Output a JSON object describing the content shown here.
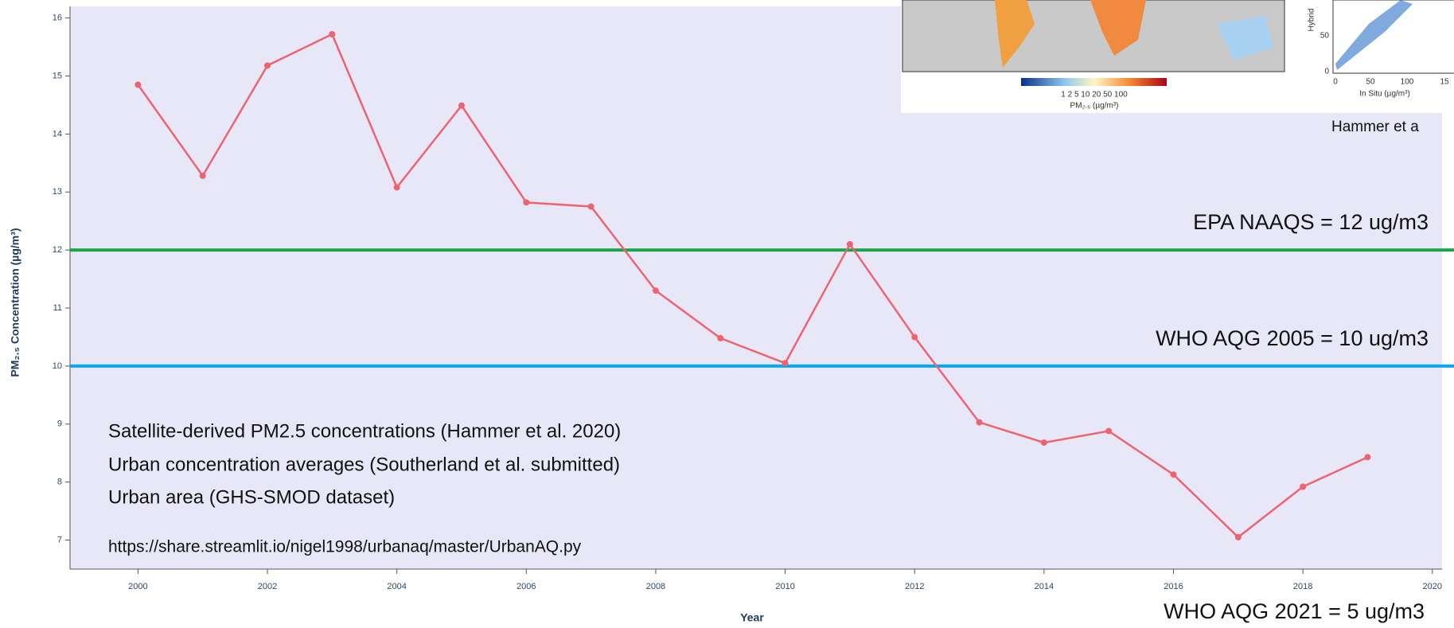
{
  "chart_data": {
    "type": "line",
    "x": [
      2000,
      2001,
      2002,
      2003,
      2004,
      2005,
      2006,
      2007,
      2008,
      2009,
      2010,
      2011,
      2012,
      2013,
      2014,
      2015,
      2016,
      2017,
      2018,
      2019
    ],
    "series": [
      {
        "color": "#ec6470",
        "values": [
          14.85,
          13.28,
          15.18,
          15.72,
          13.08,
          14.49,
          12.82,
          12.75,
          11.3,
          10.48,
          10.05,
          12.1,
          10.5,
          9.03,
          8.68,
          8.88,
          8.13,
          7.05,
          7.92,
          8.43
        ]
      }
    ],
    "xlim": [
      1998.95,
      2020.15
    ],
    "xticks": [
      2000,
      2002,
      2004,
      2006,
      2008,
      2010,
      2012,
      2014,
      2016,
      2018,
      2020
    ],
    "ylim": [
      6.5,
      16.2
    ],
    "yticks": [
      7,
      8,
      9,
      10,
      11,
      12,
      13,
      14,
      15,
      16
    ],
    "xlabel": "Year",
    "ylabel": "PM₂.₅ Concentration (µg/m³)",
    "hlines": [
      {
        "value": 12,
        "color": "#1ba34c",
        "label": "EPA NAAQS = 12 ug/m3"
      },
      {
        "value": 10,
        "color": "#0ba7ea",
        "label": "WHO AQG 2005 = 10 ug/m3"
      }
    ],
    "annotations": [
      "WHO AQG 2021 = 5 ug/m3",
      "Satellite-derived PM2.5 concentrations (Hammer et al. 2020)",
      "Urban concentration averages (Southerland et al. submitted)",
      "Urban area (GHS-SMOD dataset)",
      "https://share.streamlit.io/nigel1998/urbanaq/master/UrbanAQ.py"
    ],
    "inset": {
      "colorbar_ticks": "1   2   5  10  20  50 100",
      "colorbar_label": "PM₂.₅ (µg/m³)",
      "scatter_ylabel": "Hybrid",
      "scatter_yticks": [
        "50",
        "0"
      ],
      "scatter_xticks": [
        "0",
        "50",
        "100",
        "15"
      ],
      "scatter_xlabel": "In Situ (µg/m³)",
      "caption": "Hammer et a"
    }
  }
}
